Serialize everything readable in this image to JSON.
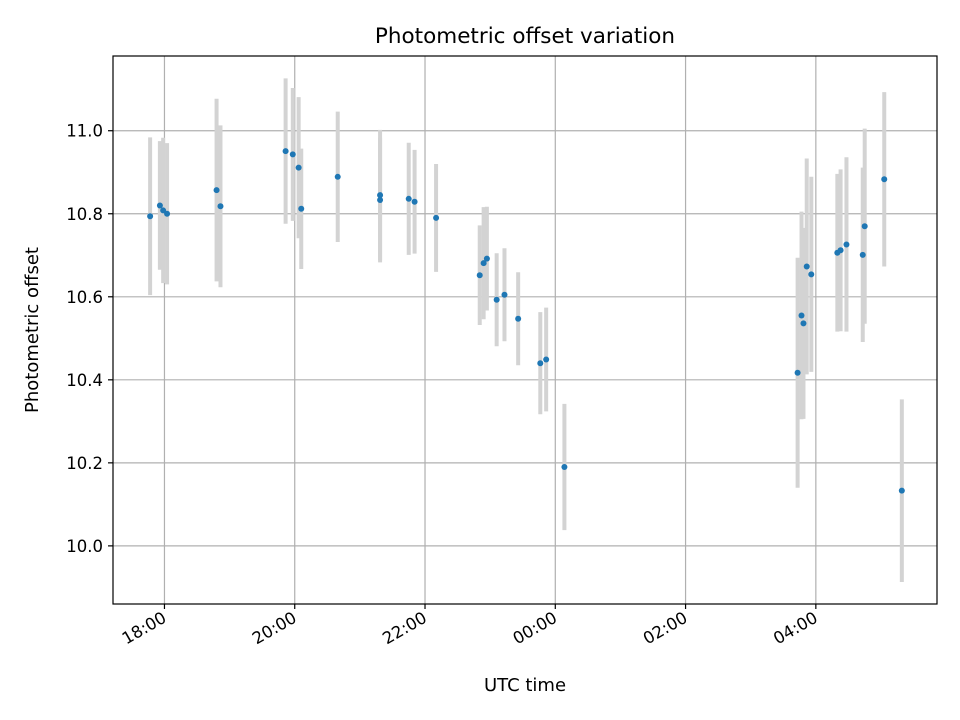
{
  "chart_data": {
    "type": "scatter",
    "title": "Photometric offset variation",
    "xlabel": "UTC time",
    "ylabel": "Photometric offset",
    "x_unit": "hours since 16:00 UTC",
    "xlim": [
      1.19,
      13.84
    ],
    "ylim": [
      9.86,
      11.18
    ],
    "grid": true,
    "x_ticks": [
      {
        "value": 1.98,
        "label": "18:00"
      },
      {
        "value": 3.98,
        "label": "20:00"
      },
      {
        "value": 5.98,
        "label": "22:00"
      },
      {
        "value": 7.98,
        "label": "00:00"
      },
      {
        "value": 9.98,
        "label": "02:00"
      },
      {
        "value": 11.98,
        "label": "04:00"
      }
    ],
    "y_ticks": [
      {
        "value": 10.0,
        "label": "10.0"
      },
      {
        "value": 10.2,
        "label": "10.2"
      },
      {
        "value": 10.4,
        "label": "10.4"
      },
      {
        "value": 10.6,
        "label": "10.6"
      },
      {
        "value": 10.8,
        "label": "10.8"
      },
      {
        "value": 11.0,
        "label": "11.0"
      }
    ],
    "colors": {
      "point": "#1f77b4",
      "errorbar": "#d3d3d3",
      "grid": "#b0b0b0"
    },
    "series": [
      {
        "name": "Photometric offset",
        "points": [
          {
            "x": 1.76,
            "y": 10.794,
            "err": 0.19
          },
          {
            "x": 1.91,
            "y": 10.82,
            "err": 0.155
          },
          {
            "x": 1.96,
            "y": 10.808,
            "err": 0.175
          },
          {
            "x": 2.02,
            "y": 10.8,
            "err": 0.17
          },
          {
            "x": 2.78,
            "y": 10.857,
            "err": 0.22
          },
          {
            "x": 2.84,
            "y": 10.818,
            "err": 0.195
          },
          {
            "x": 3.84,
            "y": 10.951,
            "err": 0.175
          },
          {
            "x": 3.95,
            "y": 10.943,
            "err": 0.16
          },
          {
            "x": 4.04,
            "y": 10.911,
            "err": 0.17
          },
          {
            "x": 4.08,
            "y": 10.812,
            "err": 0.145
          },
          {
            "x": 4.64,
            "y": 10.889,
            "err": 0.157
          },
          {
            "x": 5.29,
            "y": 10.845,
            "err": 0.157
          },
          {
            "x": 5.29,
            "y": 10.833,
            "err": 0.15
          },
          {
            "x": 5.73,
            "y": 10.836,
            "err": 0.135
          },
          {
            "x": 5.82,
            "y": 10.829,
            "err": 0.125
          },
          {
            "x": 6.15,
            "y": 10.79,
            "err": 0.13
          },
          {
            "x": 6.82,
            "y": 10.652,
            "err": 0.12
          },
          {
            "x": 6.88,
            "y": 10.681,
            "err": 0.135
          },
          {
            "x": 6.93,
            "y": 10.692,
            "err": 0.125
          },
          {
            "x": 7.08,
            "y": 10.593,
            "err": 0.112
          },
          {
            "x": 7.2,
            "y": 10.605,
            "err": 0.112
          },
          {
            "x": 7.41,
            "y": 10.547,
            "err": 0.112
          },
          {
            "x": 7.75,
            "y": 10.44,
            "err": 0.123
          },
          {
            "x": 7.84,
            "y": 10.449,
            "err": 0.125
          },
          {
            "x": 8.12,
            "y": 10.19,
            "err": 0.152
          },
          {
            "x": 11.7,
            "y": 10.417,
            "err": 0.277
          },
          {
            "x": 11.76,
            "y": 10.555,
            "err": 0.25
          },
          {
            "x": 11.79,
            "y": 10.536,
            "err": 0.23
          },
          {
            "x": 11.84,
            "y": 10.673,
            "err": 0.26
          },
          {
            "x": 11.91,
            "y": 10.654,
            "err": 0.235
          },
          {
            "x": 12.31,
            "y": 10.706,
            "err": 0.19
          },
          {
            "x": 12.36,
            "y": 10.712,
            "err": 0.195
          },
          {
            "x": 12.45,
            "y": 10.726,
            "err": 0.21
          },
          {
            "x": 12.7,
            "y": 10.701,
            "err": 0.21
          },
          {
            "x": 12.73,
            "y": 10.77,
            "err": 0.235
          },
          {
            "x": 13.03,
            "y": 10.883,
            "err": 0.21
          },
          {
            "x": 13.3,
            "y": 10.133,
            "err": 0.22
          }
        ]
      }
    ]
  }
}
